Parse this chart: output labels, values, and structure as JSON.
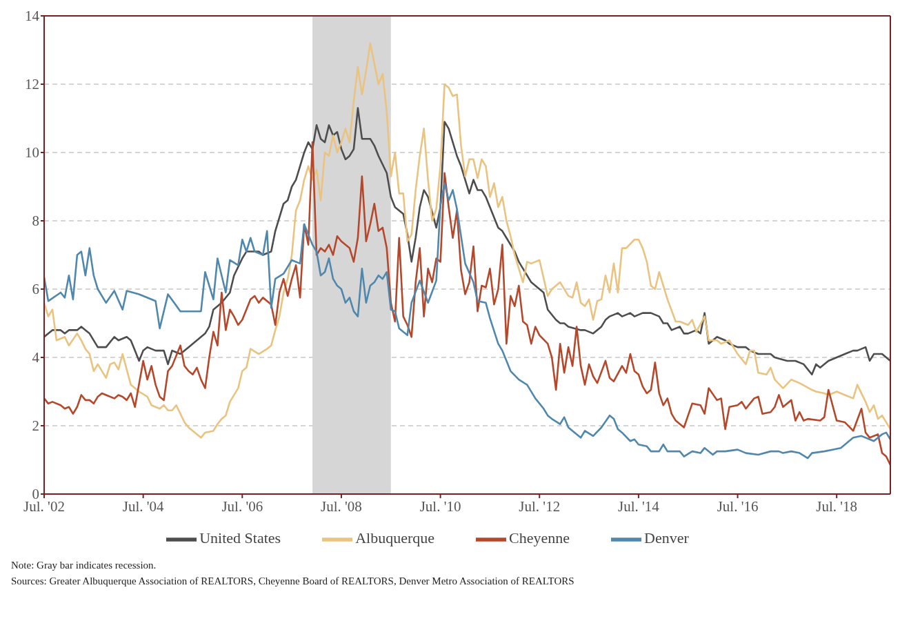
{
  "chart_data": {
    "type": "line",
    "xlim": [
      "2002-07",
      "2019-08"
    ],
    "xticks": [
      {
        "value": "2002-07",
        "label": "Jul. '02"
      },
      {
        "value": "2004-07",
        "label": "Jul. '04"
      },
      {
        "value": "2006-07",
        "label": "Jul. '06"
      },
      {
        "value": "2008-07",
        "label": "Jul. '08"
      },
      {
        "value": "2010-07",
        "label": "Jul. '10"
      },
      {
        "value": "2012-07",
        "label": "Jul. '12"
      },
      {
        "value": "2014-07",
        "label": "Jul. '14"
      },
      {
        "value": "2016-07",
        "label": "Jul. '16"
      },
      {
        "value": "2018-07",
        "label": "Jul. '18"
      }
    ],
    "ylim": [
      0,
      14
    ],
    "yticks": [
      0,
      2,
      4,
      6,
      8,
      10,
      12,
      14
    ],
    "grid": "y",
    "legend": "bottom",
    "bands": [
      {
        "axis": "x",
        "from": "2007-12",
        "to": "2009-07",
        "color": "#d6d6d6"
      }
    ],
    "annotations": [
      "Note: Gray bar indicates recession.",
      "Sources: Greater Albuquerque Association of REALTORS, Cheyenne Board of REALTORS, Denver Metro Association of REALTORS"
    ],
    "series": [
      {
        "name": "United States",
        "color": "#4d4d4d",
        "x": [
          "2002-07",
          "2002-09",
          "2002-11",
          "2002-12",
          "2003-01",
          "2003-03",
          "2003-04",
          "2003-05",
          "2003-06",
          "2003-08",
          "2003-10",
          "2003-12",
          "2004-01",
          "2004-03",
          "2004-04",
          "2004-05",
          "2004-06",
          "2004-07",
          "2004-08",
          "2004-10",
          "2004-12",
          "2005-01",
          "2005-02",
          "2005-04",
          "2005-06",
          "2005-08",
          "2005-10",
          "2005-11",
          "2005-12",
          "2006-02",
          "2006-04",
          "2006-05",
          "2006-07",
          "2006-08",
          "2006-11",
          "2006-12",
          "2007-02",
          "2007-03",
          "2007-05",
          "2007-06",
          "2007-07",
          "2007-08",
          "2007-10",
          "2007-11",
          "2007-12",
          "2008-01",
          "2008-02",
          "2008-03",
          "2008-04",
          "2008-05",
          "2008-06",
          "2008-07",
          "2008-08",
          "2008-09",
          "2008-10",
          "2008-11",
          "2008-12",
          "2009-02",
          "2009-03",
          "2009-04",
          "2009-06",
          "2009-07",
          "2009-08",
          "2009-10",
          "2009-11",
          "2009-12",
          "2010-01",
          "2010-02",
          "2010-03",
          "2010-04",
          "2010-06",
          "2010-07",
          "2010-08",
          "2010-09",
          "2010-10",
          "2010-11",
          "2010-12",
          "2011-02",
          "2011-03",
          "2011-04",
          "2011-05",
          "2011-06",
          "2011-07",
          "2011-09",
          "2011-10",
          "2011-11",
          "2012-01",
          "2012-02",
          "2012-04",
          "2012-05",
          "2012-08",
          "2012-09",
          "2012-11",
          "2012-12",
          "2013-01",
          "2013-02",
          "2013-05",
          "2013-06",
          "2013-08",
          "2013-10",
          "2013-11",
          "2013-12",
          "2014-02",
          "2014-03",
          "2014-05",
          "2014-06",
          "2014-08",
          "2014-10",
          "2014-12",
          "2015-01",
          "2015-02",
          "2015-03",
          "2015-05",
          "2015-06",
          "2015-07",
          "2015-09",
          "2015-10",
          "2015-11",
          "2015-12",
          "2016-02",
          "2016-04",
          "2016-05",
          "2016-07",
          "2016-09",
          "2016-10",
          "2016-12",
          "2017-01",
          "2017-03",
          "2017-04",
          "2017-07",
          "2017-09",
          "2017-11",
          "2018-01",
          "2018-02",
          "2018-03",
          "2018-05",
          "2018-07",
          "2018-09",
          "2018-11",
          "2018-12",
          "2019-02",
          "2019-03",
          "2019-04",
          "2019-06",
          "2019-08"
        ],
        "values": [
          4.6,
          4.8,
          4.8,
          4.7,
          4.8,
          4.8,
          4.9,
          4.8,
          4.7,
          4.3,
          4.3,
          4.6,
          4.5,
          4.6,
          4.5,
          4.2,
          3.9,
          4.2,
          4.3,
          4.2,
          4.2,
          3.8,
          4.2,
          4.1,
          4.3,
          4.5,
          4.7,
          4.9,
          5.4,
          5.6,
          5.9,
          6.4,
          6.9,
          7.1,
          7.1,
          7.0,
          7.1,
          7.7,
          8.5,
          8.6,
          9.0,
          9.2,
          10.0,
          10.3,
          10.1,
          10.8,
          10.4,
          10.3,
          10.8,
          10.5,
          10.6,
          10.1,
          9.8,
          9.9,
          10.1,
          11.3,
          10.4,
          10.4,
          10.2,
          9.9,
          9.4,
          8.7,
          8.4,
          8.2,
          7.6,
          6.8,
          7.5,
          8.4,
          8.9,
          8.7,
          7.8,
          8.4,
          10.9,
          10.7,
          10.3,
          9.9,
          9.6,
          8.8,
          9.2,
          8.9,
          8.9,
          8.7,
          8.4,
          7.8,
          7.7,
          7.5,
          7.1,
          6.8,
          6.4,
          6.2,
          5.9,
          5.4,
          5.1,
          5.0,
          5.0,
          4.9,
          4.8,
          4.8,
          4.7,
          4.9,
          5.1,
          5.2,
          5.3,
          5.2,
          5.3,
          5.2,
          5.3,
          5.3,
          5.2,
          5.0,
          5.0,
          4.8,
          4.9,
          4.7,
          4.7,
          4.8,
          4.7,
          5.3,
          4.4,
          4.6,
          4.5,
          4.4,
          4.3,
          4.3,
          4.2,
          4.1,
          4.1,
          4.1,
          4.0,
          3.9,
          3.9,
          3.8,
          3.5,
          3.8,
          3.7,
          3.9,
          4.0,
          4.1,
          4.2,
          4.2,
          4.3,
          3.9,
          4.1,
          4.1,
          3.9
        ]
      },
      {
        "name": "Albuquerque",
        "color": "#e9c37f",
        "x": [
          "2002-07",
          "2002-08",
          "2002-09",
          "2002-10",
          "2002-12",
          "2003-01",
          "2003-03",
          "2003-04",
          "2003-05",
          "2003-06",
          "2003-07",
          "2003-08",
          "2003-10",
          "2003-11",
          "2003-12",
          "2004-01",
          "2004-02",
          "2004-03",
          "2004-04",
          "2004-06",
          "2004-08",
          "2004-09",
          "2004-11",
          "2004-12",
          "2005-01",
          "2005-02",
          "2005-03",
          "2005-05",
          "2005-06",
          "2005-07",
          "2005-09",
          "2005-10",
          "2005-12",
          "2006-01",
          "2006-02",
          "2006-03",
          "2006-04",
          "2006-06",
          "2006-07",
          "2006-08",
          "2006-09",
          "2006-11",
          "2007-01",
          "2007-02",
          "2007-03",
          "2007-04",
          "2007-05",
          "2007-06",
          "2007-07",
          "2007-08",
          "2007-09",
          "2007-10",
          "2007-11",
          "2007-12",
          "2008-01",
          "2008-02",
          "2008-03",
          "2008-04",
          "2008-05",
          "2008-06",
          "2008-07",
          "2008-08",
          "2008-09",
          "2008-10",
          "2008-11",
          "2008-12",
          "2009-01",
          "2009-02",
          "2009-03",
          "2009-04",
          "2009-05",
          "2009-06",
          "2009-07",
          "2009-08",
          "2009-09",
          "2009-10",
          "2009-11",
          "2009-12",
          "2010-01",
          "2010-02",
          "2010-03",
          "2010-04",
          "2010-05",
          "2010-06",
          "2010-07",
          "2010-08",
          "2010-09",
          "2010-10",
          "2010-11",
          "2010-12",
          "2011-01",
          "2011-02",
          "2011-03",
          "2011-04",
          "2011-05",
          "2011-06",
          "2011-07",
          "2011-08",
          "2011-09",
          "2011-10",
          "2011-11",
          "2011-12",
          "2012-01",
          "2012-03",
          "2012-04",
          "2012-05",
          "2012-07",
          "2012-09",
          "2012-10",
          "2012-12",
          "2013-02",
          "2013-03",
          "2013-04",
          "2013-05",
          "2013-06",
          "2013-07",
          "2013-08",
          "2013-09",
          "2013-10",
          "2013-11",
          "2013-12",
          "2014-01",
          "2014-02",
          "2014-03",
          "2014-04",
          "2014-06",
          "2014-07",
          "2014-08",
          "2014-09",
          "2014-10",
          "2014-11",
          "2014-12",
          "2015-02",
          "2015-04",
          "2015-05",
          "2015-07",
          "2015-08",
          "2015-09",
          "2015-11",
          "2015-12",
          "2016-02",
          "2016-03",
          "2016-05",
          "2016-07",
          "2016-09",
          "2016-10",
          "2016-11",
          "2016-12",
          "2017-02",
          "2017-03",
          "2017-04",
          "2017-06",
          "2017-08",
          "2017-10",
          "2018-01",
          "2018-02",
          "2018-04",
          "2018-05",
          "2018-07",
          "2018-09",
          "2018-11",
          "2018-12",
          "2019-02",
          "2019-03",
          "2019-04",
          "2019-05",
          "2019-06",
          "2019-08"
        ],
        "values": [
          5.6,
          5.2,
          5.4,
          4.5,
          4.6,
          4.35,
          4.7,
          4.5,
          4.25,
          4.1,
          3.6,
          3.8,
          3.4,
          3.8,
          3.85,
          3.65,
          4.1,
          3.65,
          3.2,
          3.0,
          2.85,
          2.6,
          2.5,
          2.6,
          2.45,
          2.45,
          2.6,
          2.1,
          1.95,
          1.85,
          1.65,
          1.8,
          1.85,
          2.05,
          2.2,
          2.3,
          2.7,
          3.1,
          3.6,
          3.7,
          4.25,
          4.1,
          4.25,
          4.35,
          4.8,
          5.2,
          5.9,
          6.3,
          7.0,
          8.3,
          8.6,
          9.2,
          9.6,
          9.2,
          9.5,
          8.6,
          10.0,
          9.9,
          10.5,
          10.0,
          10.3,
          10.7,
          10.3,
          11.5,
          12.5,
          11.7,
          12.4,
          13.2,
          12.6,
          12.0,
          12.3,
          11.2,
          9.3,
          10.0,
          8.8,
          8.8,
          7.4,
          7.6,
          8.9,
          9.9,
          10.7,
          9.2,
          8.0,
          8.35,
          9.6,
          12.0,
          11.9,
          11.65,
          11.7,
          10.2,
          9.3,
          9.8,
          9.8,
          9.25,
          9.8,
          9.6,
          8.7,
          9.1,
          8.4,
          8.7,
          8.0,
          7.55,
          7.0,
          6.2,
          6.8,
          6.75,
          6.85,
          5.8,
          6.0,
          6.2,
          5.8,
          5.75,
          6.2,
          5.6,
          5.5,
          5.7,
          5.1,
          5.65,
          5.7,
          6.4,
          5.9,
          6.75,
          5.9,
          7.2,
          7.2,
          7.45,
          7.45,
          7.2,
          6.8,
          6.1,
          6.0,
          6.5,
          5.7,
          5.05,
          5.05,
          4.95,
          5.1,
          4.75,
          5.2,
          4.5,
          4.5,
          4.4,
          4.5,
          4.1,
          3.8,
          4.2,
          4.2,
          3.55,
          3.5,
          3.7,
          3.35,
          3.1,
          3.35,
          3.25,
          3.05,
          3.0,
          2.95,
          2.9,
          3.0,
          2.9,
          2.8,
          3.2,
          2.7,
          2.4,
          2.6,
          2.2,
          2.3,
          1.9
        ]
      },
      {
        "name": "Cheyenne",
        "color": "#b5472a",
        "x": [
          "2002-07",
          "2002-08",
          "2002-09",
          "2002-11",
          "2002-12",
          "2003-01",
          "2003-02",
          "2003-03",
          "2003-04",
          "2003-05",
          "2003-06",
          "2003-07",
          "2003-08",
          "2003-09",
          "2003-10",
          "2003-12",
          "2004-01",
          "2004-02",
          "2004-03",
          "2004-04",
          "2004-05",
          "2004-07",
          "2004-08",
          "2004-09",
          "2004-10",
          "2004-11",
          "2004-12",
          "2005-01",
          "2005-02",
          "2005-04",
          "2005-05",
          "2005-06",
          "2005-07",
          "2005-08",
          "2005-09",
          "2005-10",
          "2005-11",
          "2005-12",
          "2006-01",
          "2006-02",
          "2006-03",
          "2006-04",
          "2006-05",
          "2006-06",
          "2006-07",
          "2006-09",
          "2006-10",
          "2006-11",
          "2006-12",
          "2007-02",
          "2007-03",
          "2007-04",
          "2007-05",
          "2007-06",
          "2007-07",
          "2007-08",
          "2007-09",
          "2007-10",
          "2007-11",
          "2007-12",
          "2008-01",
          "2008-02",
          "2008-03",
          "2008-04",
          "2008-05",
          "2008-06",
          "2008-07",
          "2008-09",
          "2008-10",
          "2008-11",
          "2008-12",
          "2009-01",
          "2009-02",
          "2009-03",
          "2009-04",
          "2009-05",
          "2009-06",
          "2009-07",
          "2009-08",
          "2009-09",
          "2009-10",
          "2009-11",
          "2009-12",
          "2010-01",
          "2010-02",
          "2010-03",
          "2010-04",
          "2010-05",
          "2010-06",
          "2010-07",
          "2010-08",
          "2010-09",
          "2010-10",
          "2010-11",
          "2010-12",
          "2011-01",
          "2011-02",
          "2011-03",
          "2011-04",
          "2011-05",
          "2011-06",
          "2011-07",
          "2011-08",
          "2011-09",
          "2011-10",
          "2011-11",
          "2011-12",
          "2012-01",
          "2012-02",
          "2012-03",
          "2012-04",
          "2012-05",
          "2012-06",
          "2012-07",
          "2012-09",
          "2012-10",
          "2012-11",
          "2012-12",
          "2013-01",
          "2013-02",
          "2013-03",
          "2013-04",
          "2013-05",
          "2013-06",
          "2013-07",
          "2013-08",
          "2013-09",
          "2013-11",
          "2013-12",
          "2014-01",
          "2014-03",
          "2014-04",
          "2014-05",
          "2014-06",
          "2014-07",
          "2014-08",
          "2014-09",
          "2014-10",
          "2014-11",
          "2014-12",
          "2015-01",
          "2015-02",
          "2015-03",
          "2015-04",
          "2015-06",
          "2015-07",
          "2015-08",
          "2015-10",
          "2015-11",
          "2015-12",
          "2016-02",
          "2016-03",
          "2016-04",
          "2016-05",
          "2016-07",
          "2016-08",
          "2016-09",
          "2016-11",
          "2016-12",
          "2017-01",
          "2017-03",
          "2017-04",
          "2017-05",
          "2017-06",
          "2017-08",
          "2017-09",
          "2017-10",
          "2017-11",
          "2017-12",
          "2018-03",
          "2018-04",
          "2018-05",
          "2018-07",
          "2018-09",
          "2018-11",
          "2019-01",
          "2019-02",
          "2019-03",
          "2019-05",
          "2019-06",
          "2019-07",
          "2019-08"
        ],
        "values": [
          2.8,
          2.65,
          2.7,
          2.6,
          2.5,
          2.55,
          2.35,
          2.55,
          2.9,
          2.75,
          2.75,
          2.65,
          2.85,
          2.95,
          2.9,
          2.8,
          2.9,
          2.85,
          2.75,
          2.95,
          2.55,
          3.9,
          3.35,
          3.75,
          3.2,
          2.85,
          2.75,
          3.6,
          3.75,
          4.35,
          3.75,
          3.6,
          3.5,
          3.7,
          3.35,
          3.1,
          4.0,
          4.75,
          4.35,
          5.9,
          4.8,
          5.4,
          5.2,
          4.95,
          5.1,
          5.7,
          5.8,
          5.6,
          5.75,
          5.55,
          4.95,
          5.9,
          6.3,
          5.8,
          6.3,
          6.7,
          5.75,
          7.9,
          7.3,
          10.3,
          7.0,
          7.2,
          7.1,
          7.3,
          7.0,
          7.55,
          7.4,
          7.2,
          6.8,
          7.5,
          9.3,
          7.4,
          7.9,
          8.5,
          7.7,
          7.8,
          7.2,
          5.6,
          5.05,
          7.5,
          5.2,
          4.95,
          4.6,
          6.2,
          7.2,
          5.2,
          6.6,
          6.2,
          6.9,
          6.8,
          9.4,
          8.4,
          7.5,
          8.3,
          6.55,
          5.85,
          6.2,
          7.25,
          5.35,
          6.1,
          6.05,
          6.6,
          5.55,
          6.0,
          7.3,
          4.4,
          5.8,
          5.5,
          6.1,
          5.05,
          4.95,
          4.4,
          4.9,
          4.65,
          4.4,
          4.0,
          3.05,
          4.4,
          3.55,
          4.3,
          3.75,
          4.9,
          3.75,
          3.2,
          3.8,
          3.45,
          3.25,
          3.9,
          3.4,
          3.3,
          3.75,
          3.55,
          4.1,
          3.6,
          3.5,
          3.15,
          2.95,
          3.05,
          3.85,
          2.95,
          2.6,
          2.8,
          2.35,
          2.15,
          1.95,
          2.3,
          2.65,
          2.6,
          2.35,
          3.1,
          2.75,
          2.8,
          1.9,
          2.55,
          2.6,
          2.7,
          2.5,
          2.8,
          2.85,
          2.35,
          2.4,
          2.55,
          2.9,
          2.55,
          2.75,
          2.15,
          2.4,
          2.15,
          2.2,
          2.15,
          2.25,
          3.05,
          2.15,
          2.1,
          1.85,
          2.5,
          1.8,
          1.65,
          1.75,
          1.2,
          1.1,
          0.85
        ]
      },
      {
        "name": "Denver",
        "color": "#4f87ad",
        "x": [
          "2002-07",
          "2002-08",
          "2002-11",
          "2002-12",
          "2003-01",
          "2003-02",
          "2003-03",
          "2003-04",
          "2003-05",
          "2003-06",
          "2003-07",
          "2003-08",
          "2003-10",
          "2003-12",
          "2004-02",
          "2004-03",
          "2004-06",
          "2004-10",
          "2004-11",
          "2005-01",
          "2005-04",
          "2005-09",
          "2005-10",
          "2005-12",
          "2006-01",
          "2006-03",
          "2006-04",
          "2006-06",
          "2006-07",
          "2006-08",
          "2006-09",
          "2006-10",
          "2006-12",
          "2007-01",
          "2007-02",
          "2007-03",
          "2007-05",
          "2007-07",
          "2007-09",
          "2007-10",
          "2007-12",
          "2008-01",
          "2008-02",
          "2008-03",
          "2008-04",
          "2008-05",
          "2008-06",
          "2008-07",
          "2008-08",
          "2008-09",
          "2008-10",
          "2008-11",
          "2008-12",
          "2009-01",
          "2009-02",
          "2009-03",
          "2009-04",
          "2009-05",
          "2009-06",
          "2009-07",
          "2009-08",
          "2009-09",
          "2009-11",
          "2009-12",
          "2010-02",
          "2010-04",
          "2010-06",
          "2010-07",
          "2010-08",
          "2010-09",
          "2010-10",
          "2010-11",
          "2011-01",
          "2011-03",
          "2011-04",
          "2011-06",
          "2011-07",
          "2011-09",
          "2011-10",
          "2011-12",
          "2012-02",
          "2012-04",
          "2012-06",
          "2012-08",
          "2012-09",
          "2012-10",
          "2012-12",
          "2013-01",
          "2013-02",
          "2013-03",
          "2013-05",
          "2013-06",
          "2013-08",
          "2013-10",
          "2013-12",
          "2014-01",
          "2014-02",
          "2014-03",
          "2014-05",
          "2014-06",
          "2014-07",
          "2014-09",
          "2014-10",
          "2014-12",
          "2015-01",
          "2015-02",
          "2015-05",
          "2015-06",
          "2015-08",
          "2015-10",
          "2015-11",
          "2016-01",
          "2016-02",
          "2016-04",
          "2016-07",
          "2016-09",
          "2016-12",
          "2017-03",
          "2017-05",
          "2017-06",
          "2017-08",
          "2017-10",
          "2017-12",
          "2018-01",
          "2018-04",
          "2018-06",
          "2018-08",
          "2018-09",
          "2018-11",
          "2019-01",
          "2019-03",
          "2019-04",
          "2019-06",
          "2019-07",
          "2019-08"
        ],
        "values": [
          6.35,
          5.65,
          5.9,
          5.75,
          6.4,
          5.7,
          7.0,
          7.1,
          6.4,
          7.2,
          6.4,
          6.0,
          5.6,
          5.95,
          5.4,
          5.95,
          5.85,
          5.65,
          4.85,
          5.85,
          5.35,
          5.35,
          6.5,
          5.7,
          6.9,
          5.9,
          6.85,
          6.7,
          7.45,
          7.1,
          7.5,
          7.1,
          7.0,
          7.7,
          5.45,
          6.3,
          6.45,
          6.85,
          6.75,
          7.9,
          7.3,
          7.1,
          6.4,
          6.5,
          6.9,
          6.3,
          6.1,
          6.0,
          5.6,
          5.75,
          5.35,
          5.2,
          6.6,
          5.6,
          6.1,
          6.2,
          6.4,
          6.3,
          6.5,
          5.4,
          5.35,
          4.85,
          4.65,
          5.6,
          6.25,
          5.6,
          6.25,
          8.45,
          9.1,
          8.6,
          8.9,
          8.35,
          6.75,
          6.2,
          5.65,
          5.6,
          5.15,
          4.4,
          4.2,
          3.6,
          3.35,
          3.2,
          2.8,
          2.5,
          2.3,
          2.2,
          2.05,
          2.25,
          1.95,
          1.85,
          1.65,
          1.85,
          1.7,
          1.95,
          2.3,
          2.2,
          1.9,
          1.8,
          1.55,
          1.6,
          1.45,
          1.4,
          1.25,
          1.25,
          1.45,
          1.25,
          1.25,
          1.1,
          1.25,
          1.2,
          1.35,
          1.15,
          1.25,
          1.25,
          1.3,
          1.2,
          1.15,
          1.25,
          1.25,
          1.2,
          1.25,
          1.2,
          1.05,
          1.2,
          1.25,
          1.3,
          1.35,
          1.45,
          1.65,
          1.7,
          1.6,
          1.55,
          1.75,
          1.8,
          1.6
        ]
      }
    ]
  }
}
